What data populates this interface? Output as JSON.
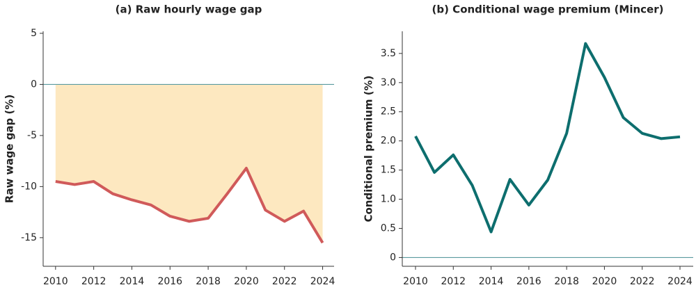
{
  "chart_data": [
    {
      "type": "line",
      "title": "(a) Raw hourly wage gap",
      "y_label": "Raw wage gap (%)",
      "x": [
        2010,
        2011,
        2012,
        2013,
        2014,
        2015,
        2016,
        2017,
        2018,
        2019,
        2020,
        2021,
        2022,
        2023,
        2024
      ],
      "values": [
        -9.5,
        -9.8,
        -9.5,
        -10.7,
        -11.3,
        -11.8,
        -12.9,
        -13.4,
        -13.1,
        -10.7,
        -8.2,
        -12.3,
        -13.4,
        -12.4,
        -15.5
      ],
      "color": "#d05a5a",
      "fill": true,
      "fill_color": "#fde8c0",
      "zero_line": true,
      "zero_color": "#5a9a9e",
      "xlim": [
        2009.35,
        2024.6
      ],
      "xticks": [
        2010,
        2012,
        2014,
        2016,
        2018,
        2020,
        2022,
        2024
      ],
      "ylim": [
        -17.8,
        5.2
      ],
      "yticks": [
        -15,
        -10,
        -5,
        0,
        5
      ]
    },
    {
      "type": "line",
      "title": "(b) Conditional wage premium (Mincer)",
      "y_label": "Conditional premium (%)",
      "x": [
        2010,
        2011,
        2012,
        2013,
        2014,
        2015,
        2016,
        2017,
        2018,
        2019,
        2020,
        2021,
        2022,
        2023,
        2024
      ],
      "values": [
        2.08,
        1.46,
        1.76,
        1.24,
        0.44,
        1.34,
        0.9,
        1.33,
        2.13,
        3.67,
        3.09,
        2.4,
        2.13,
        2.04,
        2.07
      ],
      "color": "#0d6e6e",
      "fill": false,
      "zero_line": true,
      "zero_color": "#5a9a9e",
      "xlim": [
        2009.3,
        2024.7
      ],
      "xticks": [
        2010,
        2012,
        2014,
        2016,
        2018,
        2020,
        2022,
        2024
      ],
      "ylim": [
        -0.15,
        3.88
      ],
      "yticks": [
        0,
        0.5,
        {
          "value": 1,
          "label": "1.0"
        },
        1.5,
        {
          "value": 2,
          "label": "2.0"
        },
        2.5,
        {
          "value": 3,
          "label": "3.0"
        },
        3.5
      ]
    }
  ]
}
